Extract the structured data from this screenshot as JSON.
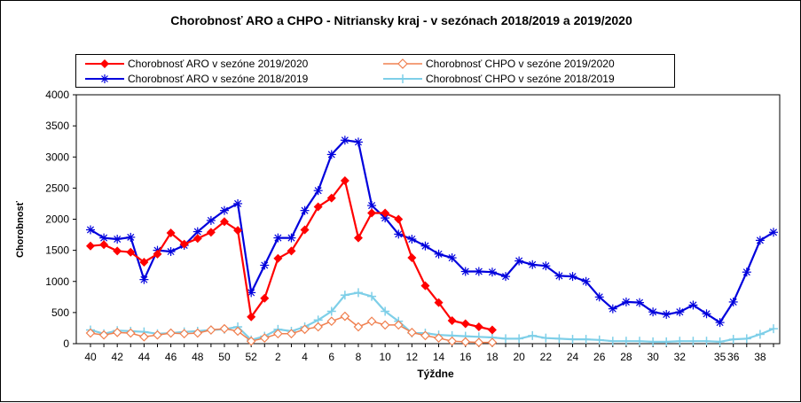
{
  "chart_data": {
    "type": "line",
    "title": "Chorobnosť ARO a CHPO - Nitriansky kraj  - v sezónach 2018/2019 a 2019/2020",
    "xlabel": "Týždne",
    "ylabel": "Chorobnosť",
    "ylim": [
      0,
      4000
    ],
    "yticks": [
      0,
      500,
      1000,
      1500,
      2000,
      2500,
      3000,
      3500,
      4000
    ],
    "weeks": [
      40,
      41,
      42,
      43,
      44,
      45,
      46,
      47,
      48,
      49,
      50,
      51,
      52,
      1,
      2,
      3,
      4,
      5,
      6,
      7,
      8,
      9,
      10,
      11,
      12,
      13,
      14,
      15,
      16,
      17,
      18,
      19,
      20,
      21,
      22,
      23,
      24,
      25,
      26,
      27,
      28,
      29,
      30,
      31,
      32,
      33,
      34,
      35,
      36,
      37,
      38,
      39
    ],
    "xtick_labels": [
      "40",
      "42",
      "44",
      "46",
      "48",
      "50",
      "52",
      "2",
      "4",
      "6",
      "8",
      "10",
      "12",
      "14",
      "16",
      "18",
      "20",
      "22",
      "24",
      "26",
      "28",
      "30",
      "32",
      "35",
      "36",
      "38"
    ],
    "legend_position": "top",
    "grid": false,
    "series": [
      {
        "name": "Chorobnosť ARO v sezóne 2019/2020",
        "color": "#ff0000",
        "marker": "diamond-filled",
        "values": [
          1570,
          1590,
          1490,
          1470,
          1310,
          1440,
          1780,
          1600,
          1690,
          1790,
          1960,
          1820,
          430,
          730,
          1370,
          1490,
          1830,
          2200,
          2340,
          2620,
          1700,
          2100,
          2100,
          2000,
          1380,
          930,
          660,
          370,
          320,
          270,
          220
        ]
      },
      {
        "name": "Chorobnosť CHPO v sezóne 2019/2020",
        "color": "#f08050",
        "marker": "diamond-open",
        "values": [
          170,
          140,
          180,
          170,
          110,
          140,
          170,
          160,
          170,
          220,
          240,
          200,
          40,
          90,
          160,
          160,
          230,
          270,
          360,
          440,
          270,
          360,
          300,
          300,
          180,
          130,
          90,
          40,
          30,
          20,
          20
        ]
      },
      {
        "name": "Chorobnosť ARO v sezóne 2018/2019",
        "color": "#0000dd",
        "marker": "star",
        "values": [
          1830,
          1700,
          1680,
          1710,
          1030,
          1500,
          1480,
          1580,
          1800,
          1980,
          2140,
          2250,
          820,
          1260,
          1700,
          1700,
          2140,
          2460,
          3040,
          3270,
          3240,
          2220,
          2020,
          1760,
          1680,
          1570,
          1440,
          1380,
          1160,
          1160,
          1150,
          1080,
          1330,
          1270,
          1250,
          1090,
          1080,
          1000,
          750,
          560,
          670,
          660,
          510,
          470,
          510,
          620,
          480,
          340,
          670,
          1150,
          1660,
          1790
        ]
      },
      {
        "name": "Chorobnosť CHPO v sezóne 2018/2019",
        "color": "#7ecfe8",
        "marker": "plus",
        "values": [
          220,
          160,
          210,
          200,
          190,
          160,
          170,
          190,
          200,
          220,
          230,
          270,
          60,
          120,
          230,
          200,
          270,
          380,
          520,
          780,
          820,
          760,
          520,
          360,
          170,
          170,
          140,
          130,
          120,
          110,
          100,
          80,
          80,
          130,
          90,
          80,
          70,
          70,
          60,
          40,
          40,
          40,
          30,
          30,
          40,
          40,
          40,
          30,
          70,
          80,
          150,
          240
        ]
      }
    ]
  }
}
